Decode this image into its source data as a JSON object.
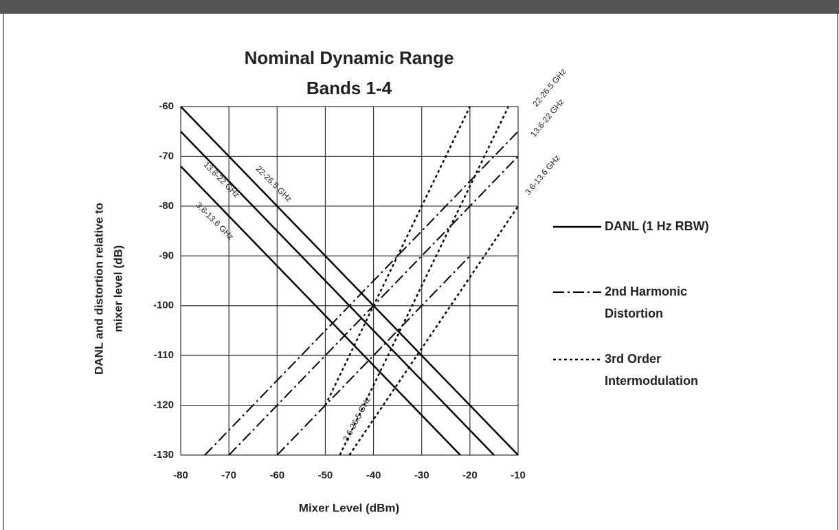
{
  "chart_data": {
    "type": "line",
    "title": [
      "Nominal Dynamic Range",
      "Bands 1-4"
    ],
    "xlabel": "Mixer Level (dBm)",
    "ylabel": [
      "DANL and distortion relative to",
      "mixer level (dB)"
    ],
    "xlim": [
      -80,
      -10
    ],
    "ylim": [
      -130,
      -60
    ],
    "xticks": [
      -80,
      -70,
      -60,
      -50,
      -40,
      -30,
      -20,
      -10
    ],
    "yticks": [
      -60,
      -70,
      -80,
      -90,
      -100,
      -110,
      -120,
      -130
    ],
    "grid": true,
    "color": "#000000",
    "series": [
      {
        "style": "solid",
        "x": [
          -80,
          -10
        ],
        "values": [
          -60,
          -130
        ]
      },
      {
        "style": "solid",
        "x": [
          -80,
          -15
        ],
        "values": [
          -65,
          -130
        ]
      },
      {
        "style": "solid",
        "x": [
          -80,
          -22
        ],
        "values": [
          -72,
          -130
        ]
      },
      {
        "style": "dashdot",
        "x": [
          -75,
          -10
        ],
        "values": [
          -130,
          -65
        ]
      },
      {
        "style": "dashdot",
        "x": [
          -70,
          -10
        ],
        "values": [
          -130,
          -70
        ]
      },
      {
        "style": "dashdot",
        "x": [
          -60,
          -20
        ],
        "values": [
          -130,
          -90
        ]
      },
      {
        "style": "dot",
        "x": [
          -47,
          -12
        ],
        "values": [
          -130,
          -60
        ]
      },
      {
        "style": "dot",
        "x": [
          -50,
          -20
        ],
        "values": [
          -120,
          -60
        ]
      },
      {
        "style": "dot",
        "x": [
          -45,
          -10
        ],
        "values": [
          -130,
          -80
        ]
      }
    ],
    "annotations": [
      "22-26.5 GHz",
      "13.6-22 GHz",
      "3.6-13.6 GHz",
      "22-26.5 GHz",
      "13.6-22 GHz",
      "3.6-13.6 GHz",
      "3.6-26.5 GHz"
    ],
    "legend": [
      {
        "style": "solid",
        "label": [
          "DANL (1 Hz RBW)"
        ]
      },
      {
        "style": "dashdot",
        "label": [
          "2nd Harmonic",
          "Distortion"
        ]
      },
      {
        "style": "dot",
        "label": [
          "3rd Order",
          "Intermodulation"
        ]
      }
    ]
  }
}
